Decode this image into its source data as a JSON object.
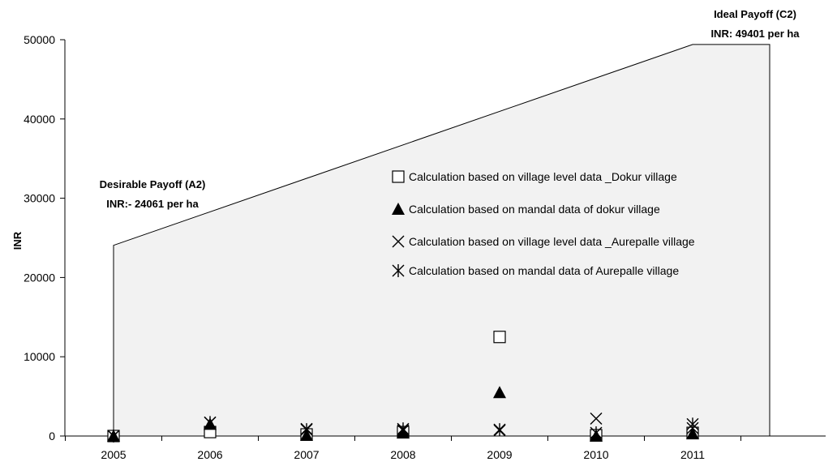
{
  "chart_data": {
    "type": "scatter",
    "title": "",
    "xlabel": "",
    "ylabel": "INR",
    "x": [
      "2005",
      "2006",
      "2007",
      "2008",
      "2009",
      "2010",
      "2011"
    ],
    "ylim": [
      0,
      50000
    ],
    "yticks": [
      0,
      10000,
      20000,
      30000,
      40000,
      50000
    ],
    "grid": false,
    "legend_position": "center-right",
    "payoff_region": {
      "start": {
        "x": "2005",
        "y": 24061
      },
      "end": {
        "x": "2011",
        "y": 49401
      },
      "fill": "#f2f2f2"
    },
    "annotations": {
      "a2_line1": "Desirable Payoff (A2)",
      "a2_line2": "INR:- 24061 per ha",
      "c2_line1": "Ideal Payoff (C2)",
      "c2_line2": "INR: 49401 per ha"
    },
    "series": [
      {
        "name": "Calculation based on village level data _Dokur village",
        "marker": "square",
        "values": [
          0,
          500,
          200,
          500,
          12500,
          100,
          400
        ]
      },
      {
        "name": "Calculation based on mandal data of dokur village",
        "marker": "triangle",
        "values": [
          0,
          1500,
          100,
          400,
          5500,
          0,
          300
        ]
      },
      {
        "name": "Calculation based on village level data _Aurepalle village",
        "marker": "x",
        "values": [
          0,
          1700,
          900,
          700,
          700,
          2200,
          1000
        ]
      },
      {
        "name": "Calculation based on mandal data of Aurepalle village",
        "marker": "asterisk",
        "values": [
          0,
          1700,
          800,
          900,
          800,
          400,
          1500
        ]
      }
    ]
  }
}
